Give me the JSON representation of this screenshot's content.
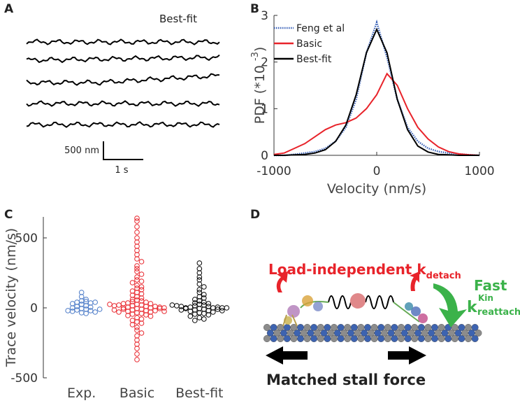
{
  "panel_labels": [
    "A",
    "B",
    "C",
    "D"
  ],
  "panel_a": {
    "title": "Best-fit",
    "scale_y": "500 nm",
    "scale_x": "1 s"
  },
  "chart_data": [
    {
      "type": "line",
      "ylabel": "PDF (*10",
      "ylabel_exponent": "-3",
      "ylabel_close": ")",
      "xlabel": "Velocity (nm/s)",
      "x": [
        -1000,
        -900,
        -800,
        -700,
        -600,
        -500,
        -400,
        -300,
        -200,
        -100,
        0,
        100,
        200,
        300,
        400,
        500,
        600,
        700,
        800,
        900,
        1000
      ],
      "series": [
        {
          "name": "Feng et al",
          "color": "#3a62b8",
          "line_style": "dotted",
          "values": [
            0,
            0,
            0.02,
            0.05,
            0.08,
            0.15,
            0.3,
            0.6,
            1.2,
            2.2,
            2.85,
            2.1,
            1.2,
            0.6,
            0.3,
            0.15,
            0.08,
            0.05,
            0.03,
            0.01,
            0
          ]
        },
        {
          "name": "Basic",
          "color": "#e8232a",
          "line_style": "solid",
          "values": [
            0.02,
            0.05,
            0.15,
            0.25,
            0.4,
            0.55,
            0.65,
            0.7,
            0.8,
            1.0,
            1.3,
            1.75,
            1.5,
            1.0,
            0.6,
            0.35,
            0.18,
            0.08,
            0.03,
            0.01,
            0
          ]
        },
        {
          "name": "Best-fit",
          "color": "#000000",
          "line_style": "solid",
          "values": [
            0,
            0,
            0.01,
            0.02,
            0.05,
            0.12,
            0.3,
            0.65,
            1.3,
            2.2,
            2.7,
            2.2,
            1.2,
            0.55,
            0.2,
            0.07,
            0.02,
            0.01,
            0,
            0,
            0
          ]
        }
      ],
      "xlim": [
        -1000,
        1000
      ],
      "xticks": [
        -1000,
        0,
        1000
      ],
      "ylim": [
        0,
        3
      ],
      "yticks": [
        0,
        1,
        2,
        3
      ],
      "legend": "upper left"
    },
    {
      "type": "scatter",
      "ylabel": "Trace velocity (nm/s)",
      "categories": [
        "Exp.",
        "Basic",
        "Best-fit"
      ],
      "series": [
        {
          "color": "#4a7ac7",
          "values": [
            110,
            80,
            60,
            50,
            45,
            40,
            35,
            30,
            25,
            15,
            10,
            5,
            0,
            -5,
            -10,
            -15,
            -20,
            -25,
            -30,
            -35,
            -40,
            -20,
            40,
            -10
          ]
        },
        {
          "color": "#e8232a",
          "values": [
            640,
            620,
            580,
            540,
            500,
            470,
            440,
            410,
            380,
            350,
            330,
            300,
            280,
            260,
            240,
            220,
            200,
            190,
            180,
            160,
            150,
            140,
            130,
            120,
            110,
            100,
            90,
            80,
            70,
            60,
            55,
            50,
            45,
            40,
            35,
            30,
            25,
            20,
            15,
            10,
            5,
            0,
            -5,
            -10,
            -15,
            -20,
            -25,
            -30,
            -35,
            -40,
            -45,
            -50,
            -55,
            -60,
            -70,
            -80,
            -90,
            -100,
            -110,
            -120,
            -140,
            -160,
            -180,
            -200,
            -230,
            -260,
            -290,
            -330,
            -370,
            0,
            10,
            -10,
            20,
            -20,
            30,
            -30,
            5,
            -5,
            15,
            -15,
            0,
            25,
            -25
          ]
        },
        {
          "color": "#000000",
          "values": [
            320,
            280,
            250,
            220,
            200,
            170,
            150,
            130,
            110,
            95,
            80,
            70,
            60,
            50,
            40,
            35,
            30,
            25,
            20,
            15,
            10,
            5,
            0,
            -5,
            -10,
            -15,
            -20,
            -25,
            -30,
            -35,
            -40,
            -45,
            -50,
            -60,
            -70,
            -80,
            -90,
            0,
            5,
            -5,
            10,
            -10,
            0,
            15,
            -15,
            0,
            -20,
            20
          ]
        }
      ],
      "ylim": [
        -500,
        650
      ],
      "yticks": [
        -500,
        0,
        500
      ]
    }
  ],
  "panel_d": {
    "detach_label": "Load-independent k",
    "detach_sub": "detach",
    "fast": "Fast",
    "k": "k",
    "k_sup": "Kin",
    "k_sub": "reattach",
    "caption": "Matched stall force"
  }
}
